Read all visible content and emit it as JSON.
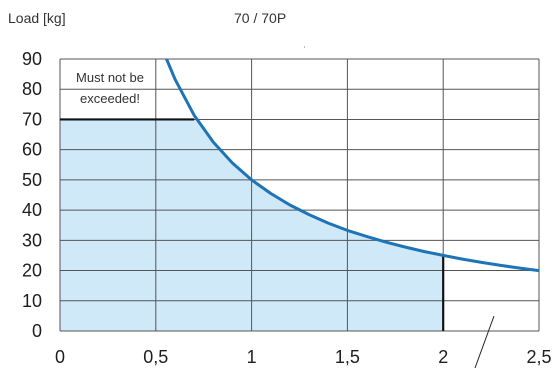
{
  "header": {
    "y_label": "Load [kg]",
    "model": "70 / 70P"
  },
  "chart_data": {
    "type": "area",
    "title": "",
    "ylabel": "Load [kg]",
    "xlabel": "",
    "xlim": [
      0,
      2.5
    ],
    "ylim": [
      0,
      90
    ],
    "x_ticks": [
      "0",
      "0,5",
      "1",
      "1,5",
      "2",
      "2,5"
    ],
    "x_tick_values": [
      0,
      0.5,
      1,
      1.5,
      2,
      2.5
    ],
    "y_ticks": [
      "0",
      "10",
      "20",
      "30",
      "40",
      "50",
      "60",
      "70",
      "80",
      "90"
    ],
    "y_tick_values": [
      0,
      10,
      20,
      30,
      40,
      50,
      60,
      70,
      80,
      90
    ],
    "grid": true,
    "series": [
      {
        "x": [
          0.556,
          0.6,
          0.7,
          0.8,
          0.9,
          1.0,
          1.1,
          1.2,
          1.3,
          1.4,
          1.5,
          1.6,
          1.7,
          1.8,
          1.9,
          2.0,
          2.1,
          2.2,
          2.3,
          2.4,
          2.5
        ],
        "y": [
          90,
          83.3,
          71.4,
          62.5,
          55.6,
          50,
          45.5,
          41.7,
          38.5,
          35.7,
          33.3,
          31.3,
          29.4,
          27.8,
          26.3,
          25,
          23.8,
          22.7,
          21.7,
          20.8,
          20
        ]
      }
    ],
    "limit_line": {
      "y": 70,
      "x_range": [
        0,
        0.7
      ]
    },
    "shaded_region": {
      "x_range": [
        0,
        2
      ],
      "cap_y": 70
    },
    "vertical_marker": {
      "x": 2,
      "y_range": [
        0,
        25
      ]
    },
    "annotation": [
      "Must not be",
      "exceeded!"
    ],
    "colors": {
      "curve": "#1f73b7",
      "fill": "#cfe9f8",
      "grid": "#555555",
      "limit": "#111111"
    }
  }
}
